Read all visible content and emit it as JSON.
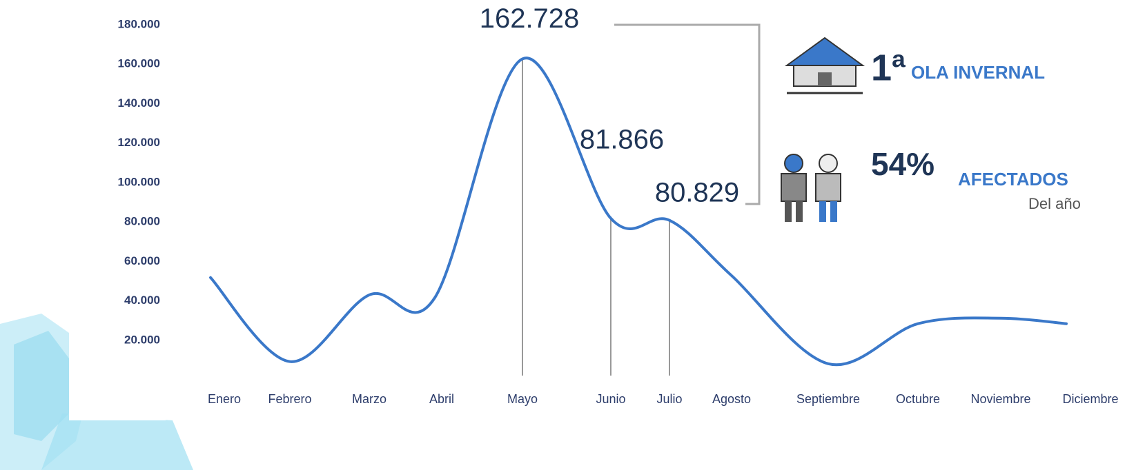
{
  "chart_data": {
    "type": "line",
    "categories": [
      "Enero",
      "Febrero",
      "Marzo",
      "Abril",
      "Mayo",
      "Junio",
      "Julio",
      "Agosto",
      "Septiembre",
      "Octubre",
      "Noviembre",
      "Diciembre"
    ],
    "series": [
      {
        "color": "#3a78c9",
        "values": [
          51800,
          9200,
          43000,
          41600,
          162728,
          81866,
          80829,
          52800,
          8100,
          28400,
          31200,
          28400
        ],
        "value_labels": [
          null,
          null,
          null,
          null,
          "162.728",
          "81.866",
          "80.829",
          null,
          null,
          null,
          null,
          null
        ]
      }
    ],
    "ylim": [
      0,
      180000
    ],
    "yticks": [
      {
        "value": 20000,
        "label": "20.000"
      },
      {
        "value": 40000,
        "label": "40.000"
      },
      {
        "value": 60000,
        "label": "60.000"
      },
      {
        "value": 80000,
        "label": "80.000"
      },
      {
        "value": 100000,
        "label": "100.000"
      },
      {
        "value": 120000,
        "label": "120.000"
      },
      {
        "value": 140000,
        "label": "140.000"
      },
      {
        "value": 160000,
        "label": "160.000"
      },
      {
        "value": 180000,
        "label": "180.000"
      }
    ],
    "grid": false,
    "infographic": [
      {
        "number": "1ª",
        "label": "OLA INVERNAL"
      },
      {
        "number": "54%",
        "label": "AFECTADOS",
        "sublabel": "Del año"
      }
    ]
  }
}
